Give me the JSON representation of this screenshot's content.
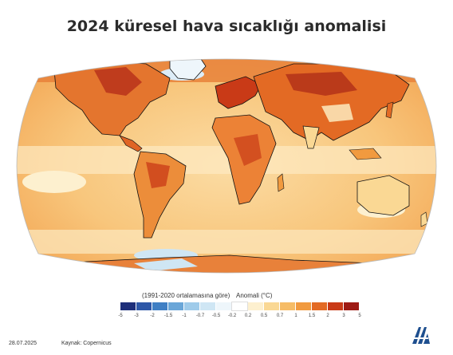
{
  "title": "2024 küresel hava sıcaklığı anomalisi",
  "legend": {
    "baseline_note": "(1991-2020 ortalamasına göre)",
    "label": "Anomali (°C)",
    "ticks": [
      "-5",
      "-3",
      "-2",
      "-1.5",
      "-1",
      "-0.7",
      "-0.5",
      "-0.2",
      "0.2",
      "0.5",
      "0.7",
      "1",
      "1.5",
      "2",
      "3",
      "5"
    ],
    "colors": [
      "#1e2f7a",
      "#2e58a8",
      "#3f7fc4",
      "#6aa6d8",
      "#9fcbea",
      "#cfe6f4",
      "#eef6fb",
      "#ffffff",
      "#fdf0cf",
      "#fad894",
      "#f6bc66",
      "#f19a3f",
      "#e36a24",
      "#c93a17",
      "#9e1a14"
    ]
  },
  "footer": {
    "date": "28.07.2025",
    "source": "Kaynak: Copernicus"
  },
  "logo": {
    "icon": "aa-news-agency-logo",
    "text": "AA",
    "color": "#1e4f8f"
  },
  "map": {
    "projection": "robinson",
    "variable": "surface air temperature anomaly 2024"
  }
}
